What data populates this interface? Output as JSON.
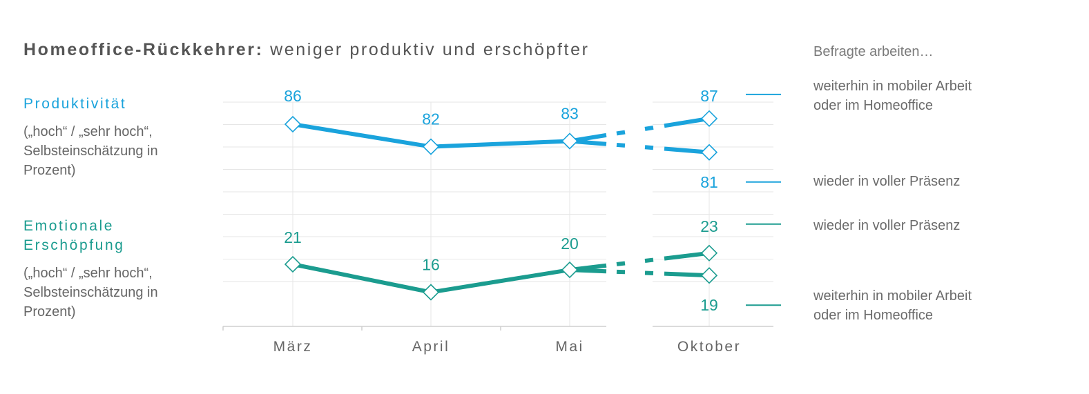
{
  "title": {
    "bold": "Homeoffice-Rückkehrer:",
    "rest": "weniger produktiv und erschöpfter"
  },
  "legend_heading": "Befragte arbeiten…",
  "sections": [
    {
      "heading": "Produktivität",
      "note_lines": [
        "(„hoch“ / „sehr hoch“,",
        "Selbsteinschätzung in",
        "Prozent)"
      ]
    },
    {
      "heading_lines": [
        "Emotionale",
        "Erschöpfung"
      ],
      "note_lines": [
        "(„hoch“ / „sehr hoch“,",
        "Selbsteinschätzung in",
        "Prozent)"
      ]
    }
  ],
  "legend_labels": {
    "prod_mobile": [
      "weiterhin in mobiler Arbeit",
      "oder im Homeoffice"
    ],
    "prod_presence": "wieder in voller Präsenz",
    "exh_presence": "wieder in voller Präsenz",
    "exh_mobile": [
      "weiterhin in mobiler Arbeit",
      "oder im Homeoffice"
    ]
  },
  "colors": {
    "productivity": "#1aa3dc",
    "exhaustion": "#1b9c8f",
    "grid": "#e6e6e6",
    "axis_text": "#666666"
  },
  "chart_data": [
    {
      "type": "line",
      "name": "Produktivität",
      "categories": [
        "März",
        "April",
        "Mai",
        "Oktober"
      ],
      "break_between": [
        "Mai",
        "Oktober"
      ],
      "series": [
        {
          "values": [
            86,
            82,
            83,
            87
          ]
        },
        {
          "values": [
            86,
            82,
            83,
            81
          ]
        }
      ],
      "grid": true
    },
    {
      "type": "line",
      "name": "Emotionale Erschöpfung",
      "categories": [
        "März",
        "April",
        "Mai",
        "Oktober"
      ],
      "break_between": [
        "Mai",
        "Oktober"
      ],
      "series": [
        {
          "values": [
            21,
            16,
            20,
            23
          ]
        },
        {
          "values": [
            21,
            16,
            20,
            19
          ]
        }
      ],
      "grid": true
    }
  ]
}
